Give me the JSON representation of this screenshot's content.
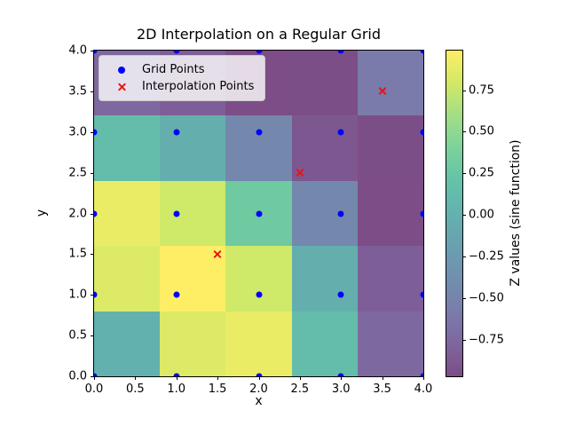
{
  "chart_data": {
    "type": "heatmap",
    "title": "2D Interpolation on a Regular Grid",
    "xlabel": "x",
    "ylabel": "y",
    "x_range": [
      0,
      4
    ],
    "y_range": [
      0,
      4
    ],
    "x_tick_labels": [
      "0.0",
      "0.5",
      "1.0",
      "1.5",
      "2.0",
      "2.5",
      "3.0",
      "3.5",
      "4.0"
    ],
    "y_tick_labels": [
      "4.0",
      "3.5",
      "3.0",
      "2.5",
      "2.0",
      "1.5",
      "1.0",
      "0.5",
      "0.0"
    ],
    "grid_shape": [
      5,
      5
    ],
    "row_order": "bottom-to-top (y=0 row first)",
    "z_values": [
      [
        0.0,
        0.841,
        0.909,
        0.141,
        -0.757
      ],
      [
        0.841,
        0.988,
        0.787,
        -0.021,
        -0.83
      ],
      [
        0.909,
        0.787,
        0.308,
        -0.447,
        -0.971
      ],
      [
        0.141,
        -0.021,
        -0.447,
        -0.894,
        -0.959
      ],
      [
        -0.757,
        -0.83,
        -0.971,
        -0.959,
        -0.588
      ]
    ],
    "cell_colors": [
      [
        "#63b1ae",
        "#dcea67",
        "#ebec66",
        "#64bdab",
        "#7e68a0"
      ],
      [
        "#dcea67",
        "#feee66",
        "#cfe968",
        "#64afae",
        "#7e5e98"
      ],
      [
        "#ebec66",
        "#cfe968",
        "#70caa1",
        "#7488ad",
        "#7c4d87"
      ],
      [
        "#64bdab",
        "#64afae",
        "#7488ad",
        "#7d5790",
        "#7c4e88"
      ],
      [
        "#7e68a0",
        "#7e5e98",
        "#7c4d87",
        "#7c4e88",
        "#7a7baa"
      ]
    ],
    "grid_points": [
      [
        0,
        0
      ],
      [
        1,
        0
      ],
      [
        2,
        0
      ],
      [
        3,
        0
      ],
      [
        4,
        0
      ],
      [
        0,
        1
      ],
      [
        1,
        1
      ],
      [
        2,
        1
      ],
      [
        3,
        1
      ],
      [
        4,
        1
      ],
      [
        0,
        2
      ],
      [
        1,
        2
      ],
      [
        2,
        2
      ],
      [
        3,
        2
      ],
      [
        4,
        2
      ],
      [
        0,
        3
      ],
      [
        1,
        3
      ],
      [
        2,
        3
      ],
      [
        3,
        3
      ],
      [
        4,
        3
      ],
      [
        0,
        4
      ],
      [
        1,
        4
      ],
      [
        2,
        4
      ],
      [
        3,
        4
      ],
      [
        4,
        4
      ]
    ],
    "interpolation_points": [
      [
        1.5,
        1.5
      ],
      [
        2.5,
        2.5
      ],
      [
        3.5,
        3.5
      ]
    ],
    "marker_colors": {
      "grid_points": "#0000ff",
      "interpolation_points": "#ee1111"
    },
    "legend": {
      "items": [
        {
          "label": "Grid Points",
          "marker": "dot",
          "color": "#0000ff"
        },
        {
          "label": "Interpolation Points",
          "marker": "x",
          "color": "#ee1111"
        }
      ]
    },
    "colorbar": {
      "label": "Z values (sine function)",
      "vmin": -0.971,
      "vmax": 0.988,
      "tick_values": [
        0.75,
        0.5,
        0.25,
        0,
        -0.25,
        -0.5,
        -0.75
      ],
      "tick_labels": [
        "0.75",
        "0.50",
        "0.25",
        "0.00",
        "−0.25",
        "−0.50",
        "−0.75"
      ],
      "gradient_stops": [
        {
          "pos": 0,
          "color": "#7c4d87"
        },
        {
          "pos": 10,
          "color": "#7f669e"
        },
        {
          "pos": 20,
          "color": "#7a7cab"
        },
        {
          "pos": 30,
          "color": "#718faf"
        },
        {
          "pos": 40,
          "color": "#6aa0b0"
        },
        {
          "pos": 50,
          "color": "#63b2ae"
        },
        {
          "pos": 60,
          "color": "#64c2a9"
        },
        {
          "pos": 70,
          "color": "#7cd29b"
        },
        {
          "pos": 80,
          "color": "#a2de85"
        },
        {
          "pos": 90,
          "color": "#d1e967"
        },
        {
          "pos": 100,
          "color": "#feee66"
        }
      ]
    }
  }
}
